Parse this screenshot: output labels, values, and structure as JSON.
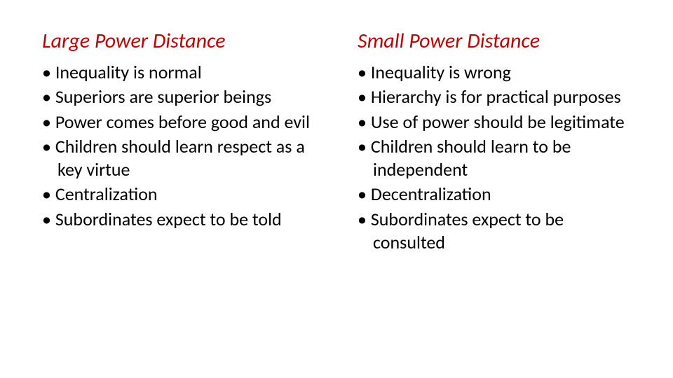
{
  "left": {
    "title": "Large Power Distance",
    "title_color": "#c00000",
    "items": [
      "Inequality is normal",
      "Superiors are superior beings",
      "Power comes before good and evil",
      "Children should learn respect as a key virtue",
      "Centralization",
      "Subordinates expect to be told"
    ]
  },
  "right": {
    "title": "Small Power Distance",
    "title_color": "#c00000",
    "items": [
      "Inequality is wrong",
      "Hierarchy is for practical purposes",
      "Use of power should be legitimate",
      "Children should learn to be independent",
      "Decentralization",
      "Subordinates expect to be consulted"
    ]
  },
  "styling": {
    "background_color": "#ffffff",
    "text_color": "#000000",
    "title_fontsize_pt": 22,
    "title_style": "italic",
    "body_fontsize_pt": 19,
    "font_family": "Calibri"
  }
}
